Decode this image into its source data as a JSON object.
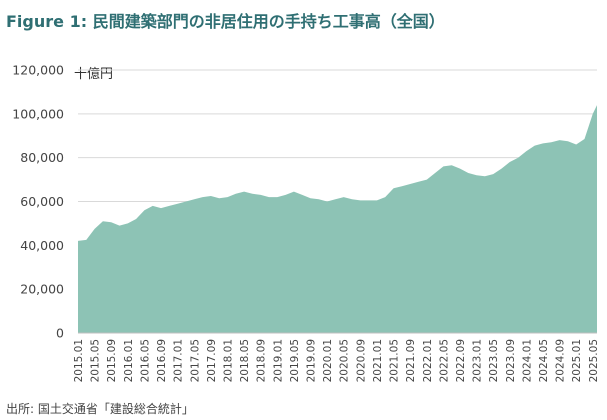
{
  "title_prefix": "Figure 1:",
  "title_text": "民間建築部門の非居住用の手持ち工事高（全国）",
  "source": "出所: 国土交通省「建設総合統計」",
  "chart_data": {
    "type": "area",
    "unit_label": "十億円",
    "ylim": [
      0,
      120000
    ],
    "yticks": [
      0,
      20000,
      40000,
      60000,
      80000,
      100000,
      120000
    ],
    "ytick_labels": [
      "0",
      "20,000",
      "40,000",
      "60,000",
      "80,000",
      "100,000",
      "120,000"
    ],
    "grid": true,
    "fill_color": "#8dc3b5",
    "xtick_labels": [
      "2015.01",
      "2015.05",
      "2015.09",
      "2016.01",
      "2016.05",
      "2016.09",
      "2017.01",
      "2017.05",
      "2017.09",
      "2018.01",
      "2018.05",
      "2018.09",
      "2019.01",
      "2019.05",
      "2019.09",
      "2020.01",
      "2020.05",
      "2020.09",
      "2021.01",
      "2021.05",
      "2021.09",
      "2022.01",
      "2022.05",
      "2022.09",
      "2023.01",
      "2023.05",
      "2023.09",
      "2024.01",
      "2024.05",
      "2024.09",
      "2025.01",
      "2025.05"
    ],
    "x": [
      "2015.01",
      "2015.03",
      "2015.05",
      "2015.07",
      "2015.09",
      "2015.11",
      "2016.01",
      "2016.03",
      "2016.05",
      "2016.07",
      "2016.09",
      "2016.11",
      "2017.01",
      "2017.03",
      "2017.05",
      "2017.07",
      "2017.09",
      "2017.11",
      "2018.01",
      "2018.03",
      "2018.05",
      "2018.07",
      "2018.09",
      "2018.11",
      "2019.01",
      "2019.03",
      "2019.05",
      "2019.07",
      "2019.09",
      "2019.11",
      "2020.01",
      "2020.03",
      "2020.05",
      "2020.07",
      "2020.09",
      "2020.11",
      "2021.01",
      "2021.03",
      "2021.05",
      "2021.07",
      "2021.09",
      "2021.11",
      "2022.01",
      "2022.03",
      "2022.05",
      "2022.07",
      "2022.09",
      "2022.11",
      "2023.01",
      "2023.03",
      "2023.05",
      "2023.07",
      "2023.09",
      "2023.11",
      "2024.01",
      "2024.03",
      "2024.05",
      "2024.07",
      "2024.09",
      "2024.11",
      "2025.01",
      "2025.03",
      "2025.05",
      "2025.06"
    ],
    "values": [
      42000,
      42500,
      47500,
      51000,
      50500,
      49000,
      50000,
      52000,
      56000,
      58000,
      57000,
      58000,
      59000,
      60000,
      61000,
      62000,
      62500,
      61500,
      62000,
      63500,
      64500,
      63500,
      63000,
      62000,
      62000,
      63000,
      64500,
      63000,
      61500,
      61000,
      60000,
      61000,
      62000,
      61000,
      60500,
      60500,
      60500,
      62000,
      66000,
      67000,
      68000,
      69000,
      70000,
      73000,
      76000,
      76500,
      75000,
      73000,
      72000,
      71500,
      72500,
      75000,
      78000,
      80000,
      83000,
      85500,
      86500,
      87000,
      88000,
      87500,
      86000,
      88500,
      100000,
      104000
    ]
  }
}
